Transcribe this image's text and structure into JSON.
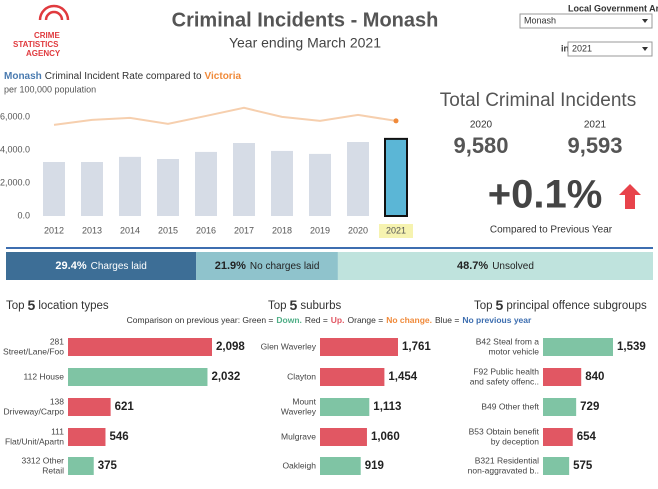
{
  "header": {
    "logo": [
      "CRIME",
      "STATISTICS",
      "AGENCY"
    ],
    "title": "Criminal Incidents - Monash",
    "subtitle": "Year ending March 2021",
    "lga_label": "Local Government Area",
    "lga_value": "Monash",
    "year_prefix": "in",
    "year_value": "2021"
  },
  "kpi": {
    "title": "Total Criminal Incidents",
    "prev_year": "2020",
    "prev_value": "9,580",
    "curr_year": "2021",
    "curr_value": "9,593",
    "change": "+0.1%",
    "change_label": "Compared to Previous Year"
  },
  "legend": [
    {
      "text": "Comparison on previous year: Green =",
      "color": "#333333"
    },
    {
      "text": "Down.",
      "color": "#4fae86"
    },
    {
      "text": "Red =",
      "color": "#333333"
    },
    {
      "text": "Up.",
      "color": "#e15763"
    },
    {
      "text": "Orange =",
      "color": "#333333"
    },
    {
      "text": "No change.",
      "color": "#f08a3a"
    },
    {
      "text": "Blue =",
      "color": "#333333"
    },
    {
      "text": "No previous year",
      "color": "#3d6eb0"
    }
  ],
  "chart_data": [
    {
      "type": "combo",
      "title": "Criminal Incident Rate compared to",
      "subtitle": "per 100,000 population",
      "categories": [
        "2012",
        "2013",
        "2014",
        "2015",
        "2016",
        "2017",
        "2018",
        "2019",
        "2020",
        "2021"
      ],
      "highlight_category": "2021",
      "highlight_label_color": "#f6f3b0",
      "series": [
        {
          "name": "Monash",
          "type": "bar",
          "name_color": "#4a7bb0",
          "colors": [
            "#d6dce6",
            "#d6dce6",
            "#d6dce6",
            "#d6dce6",
            "#d6dce6",
            "#d6dce6",
            "#d6dce6",
            "#d6dce6",
            "#d6dce6",
            "#5bb6d6"
          ],
          "values": [
            3270,
            3270,
            3580,
            3450,
            3880,
            4420,
            3940,
            3760,
            4480,
            4670
          ]
        },
        {
          "name": "Victoria",
          "type": "line",
          "name_color": "#f08a3a",
          "color": "#f6cfae",
          "marker_color": "#f08a3a",
          "values": [
            5520,
            5820,
            5940,
            5580,
            6060,
            6550,
            6000,
            5760,
            6120,
            5760
          ]
        }
      ],
      "ylim": [
        0,
        6600
      ],
      "yticks": [
        {
          "value": 0,
          "label": "0.0"
        },
        {
          "value": 2000,
          "label": "2,000.0"
        },
        {
          "value": 4000,
          "label": "4,000.0"
        },
        {
          "value": 6000,
          "label": "6,000.0"
        }
      ],
      "grid": false
    },
    {
      "type": "stacked",
      "categories": [
        "Charges laid",
        "No charges laid",
        "Unsolved"
      ],
      "values": [
        29.4,
        21.9,
        48.7
      ],
      "value_labels": [
        "29.4%",
        "21.9%",
        "48.7%"
      ],
      "colors": [
        "#3d6e96",
        "#8fc3cc",
        "#bfe3dd"
      ],
      "xlim": [
        0,
        100
      ]
    },
    {
      "type": "hbar",
      "title": [
        "Top",
        "5",
        "location types"
      ],
      "categories": [
        [
          "281",
          "Street/Lane/Foo"
        ],
        [
          "112 House"
        ],
        [
          "138",
          "Driveway/Carpo"
        ],
        [
          "111",
          "Flat/Unit/Apartn"
        ],
        [
          "3312 Other",
          "Retail"
        ]
      ],
      "values": [
        2098,
        2032,
        621,
        546,
        375
      ],
      "value_labels": [
        "2,098",
        "2,032",
        "621",
        "546",
        "375"
      ],
      "colors": [
        "#e15763",
        "#7fc4a4",
        "#e15763",
        "#e15763",
        "#7fc4a4"
      ]
    },
    {
      "type": "hbar",
      "title": [
        "Top",
        "5",
        "suburbs"
      ],
      "categories": [
        [
          "Glen Waverley"
        ],
        [
          "Clayton"
        ],
        [
          "Mount",
          "Waverley"
        ],
        [
          "Mulgrave"
        ],
        [
          "Oakleigh"
        ]
      ],
      "values": [
        1761,
        1454,
        1113,
        1060,
        919
      ],
      "value_labels": [
        "1,761",
        "1,454",
        "1,113",
        "1,060",
        "919"
      ],
      "colors": [
        "#e15763",
        "#e15763",
        "#7fc4a4",
        "#e15763",
        "#7fc4a4"
      ]
    },
    {
      "type": "hbar",
      "title": [
        "Top",
        "5",
        "principal offence subgroups"
      ],
      "categories": [
        [
          "B42 Steal from a",
          "motor vehicle"
        ],
        [
          "F92 Public health",
          "and safety offenc.."
        ],
        [
          "B49 Other theft"
        ],
        [
          "B53 Obtain benefit",
          "by deception"
        ],
        [
          "B321 Residential",
          "non-aggravated b.."
        ]
      ],
      "values": [
        1539,
        840,
        729,
        654,
        575
      ],
      "value_labels": [
        "1,539",
        "840",
        "729",
        "654",
        "575"
      ],
      "colors": [
        "#7fc4a4",
        "#e15763",
        "#7fc4a4",
        "#e15763",
        "#7fc4a4"
      ]
    }
  ]
}
